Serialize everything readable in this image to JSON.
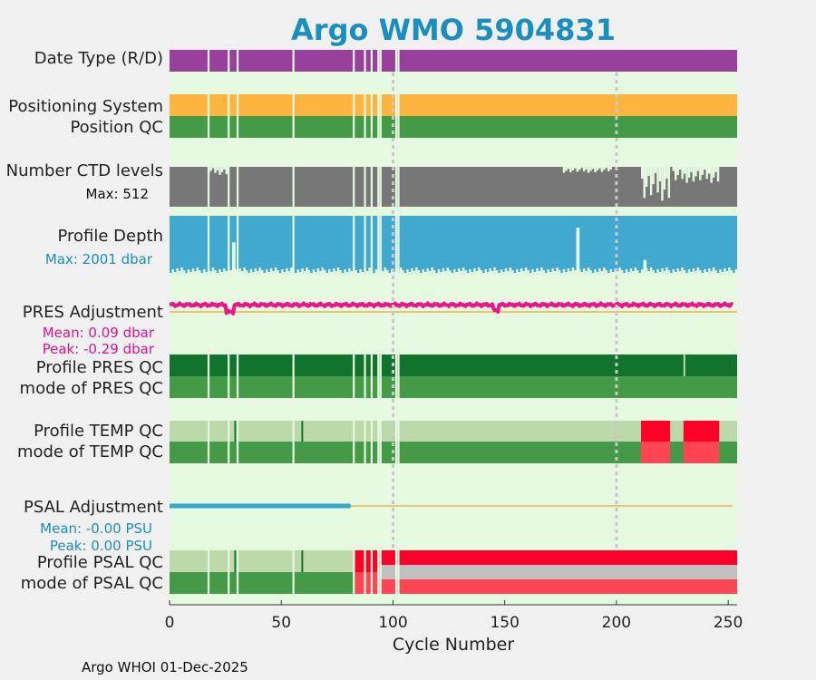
{
  "chart_data": {
    "type": "timeline",
    "title": "Argo WMO 5904831",
    "xlabel": "Cycle Number",
    "xlim": [
      0,
      254
    ],
    "xticks": [
      0,
      50,
      100,
      150,
      200,
      250
    ],
    "xtick_labels": [
      "0",
      "50",
      "100",
      "150",
      "200",
      "250"
    ],
    "vertical_reference_lines": [
      100,
      200
    ],
    "missing_cycles": [
      17,
      26,
      30,
      55,
      82,
      87,
      90,
      93,
      94,
      101,
      102
    ],
    "colors": {
      "background": "#e5f8e0",
      "data_mode": "#993f9c",
      "positioning": "#fdb53f",
      "good": "#449a47",
      "good_dark": "#12742c",
      "good_light": "#bcdaa9",
      "bad": "#ff0028",
      "bad_light": "#ff4453",
      "gray": "#c0c0c0",
      "ctd": "#777777",
      "depth": "#41a9cf",
      "pres_adj": "#ea148b",
      "psal_adj": "#38a6c9",
      "zero_line": "#f0b441",
      "title": "#1a8ebf"
    },
    "rows": {
      "data_type": {
        "label": "Date Type (R/D)"
      },
      "positioning": {
        "label": "Positioning System"
      },
      "position_qc": {
        "label": "Position QC"
      },
      "ctd_levels": {
        "label": "Number CTD levels",
        "stat": "Max: 512",
        "max": 512,
        "low_value_ranges": [
          [
            17,
            26,
            0.8
          ],
          [
            176,
            198,
            0.85
          ],
          [
            211,
            224,
            0.15
          ],
          [
            225,
            246,
            0.6
          ]
        ]
      },
      "profile_depth": {
        "label": "Profile Depth",
        "stat": "Max: 2001 dbar",
        "max_dbar": 2001,
        "short_cycles": [
          [
            28,
            0.55
          ],
          [
            182,
            0.8
          ],
          [
            212,
            0.25
          ]
        ]
      },
      "pres_adjustment": {
        "label": "PRES Adjustment",
        "stat_mean": "Mean: 0.09 dbar",
        "stat_peak": "Peak: -0.29 dbar",
        "mean_dbar": 0.09,
        "peak_dbar": -0.29
      },
      "profile_pres_qc": {
        "label": "Profile PRES QC",
        "light_cycles": [
          230
        ]
      },
      "mode_pres_qc": {
        "label": "mode of PRES QC"
      },
      "profile_temp_qc": {
        "label": "Profile TEMP QC",
        "dark_cycles": [
          29,
          59
        ],
        "bad_ranges": [
          [
            211,
            224
          ],
          [
            230,
            246
          ]
        ]
      },
      "mode_temp_qc": {
        "label": "mode of TEMP QC",
        "bad_ranges": [
          [
            211,
            224
          ],
          [
            230,
            246
          ]
        ]
      },
      "psal_adjustment": {
        "label": "PSAL Adjustment",
        "stat_mean": "Mean: -0.00 PSU",
        "stat_peak": "Peak: 0.00 PSU",
        "mean_psu": 0.0,
        "peak_psu": 0.0,
        "adjusted_until_cycle": 81
      },
      "profile_psal_qc": {
        "label": "Profile PSAL QC",
        "dark_cycles": [
          29,
          59
        ],
        "bad_from_cycle": 83
      },
      "mode_psal_qc": {
        "label": "mode of PSAL QC",
        "bad_light_from_cycle": 83,
        "gray_from_cycle": 94
      }
    },
    "footer": "Argo WHOI 01-Dec-2025"
  }
}
